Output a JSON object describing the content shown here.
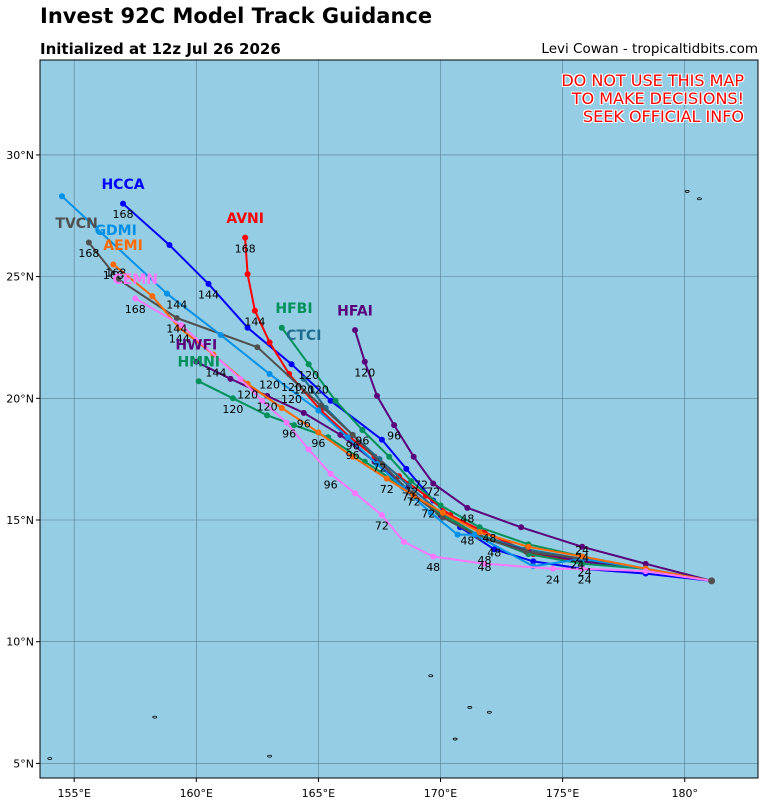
{
  "header": {
    "title": "Invest 92C Model Track Guidance",
    "initialized": "Initialized at 12z Jul 26 2026",
    "credit": "Levi Cowan - tropicaltidbits.com"
  },
  "warning": {
    "line1": "DO NOT USE THIS MAP",
    "line2": "TO MAKE DECISIONS!",
    "line3": "SEEK OFFICIAL INFO"
  },
  "map": {
    "ocean_color": "#94cde4",
    "grid_color": "#5a7f90",
    "lon_ticks": [
      {
        "lon": 155,
        "label": "155°E"
      },
      {
        "lon": 160,
        "label": "160°E"
      },
      {
        "lon": 165,
        "label": "165°E"
      },
      {
        "lon": 170,
        "label": "170°E"
      },
      {
        "lon": 175,
        "label": "175°E"
      },
      {
        "lon": 180,
        "label": "180°"
      }
    ],
    "lat_ticks": [
      {
        "lat": 5,
        "label": "5°N"
      },
      {
        "lat": 10,
        "label": "10°N"
      },
      {
        "lat": 15,
        "label": "15°N"
      },
      {
        "lat": 20,
        "label": "20°N"
      },
      {
        "lat": 25,
        "label": "25°N"
      },
      {
        "lat": 30,
        "label": "30°N"
      }
    ],
    "lon_range": [
      153.6,
      183.0
    ],
    "lat_range": [
      4.4,
      33.9
    ]
  },
  "models": [
    {
      "name": "HCCA",
      "color": "#0000ff",
      "points": [
        [
          181.1,
          12.5
        ],
        [
          178.4,
          12.8
        ],
        [
          175.8,
          13.0
        ],
        [
          173.8,
          13.3
        ],
        [
          172.2,
          13.8
        ],
        [
          170.8,
          14.7
        ],
        [
          169.7,
          15.8
        ],
        [
          168.6,
          17.1
        ],
        [
          167.6,
          18.3
        ],
        [
          165.5,
          19.9
        ],
        [
          163.9,
          21.4
        ],
        [
          162.1,
          22.9
        ],
        [
          160.5,
          24.7
        ],
        [
          158.9,
          26.3
        ],
        [
          157.0,
          28.0
        ]
      ],
      "label": [
        157.0,
        28.6
      ],
      "hour_labels": [
        {
          "t": "168",
          "lon": 157.0,
          "lat": 27.4
        },
        {
          "t": "144",
          "lon": 160.5,
          "lat": 24.1
        }
      ]
    },
    {
      "name": "AVNI",
      "color": "#ff0000",
      "points": [
        [
          181.1,
          12.5
        ],
        [
          178.4,
          13.0
        ],
        [
          175.8,
          13.3
        ],
        [
          173.8,
          13.6
        ],
        [
          171.8,
          14.5
        ],
        [
          170.4,
          15.2
        ],
        [
          169.4,
          16.0
        ],
        [
          168.3,
          16.8
        ],
        [
          167.3,
          17.6
        ],
        [
          166.3,
          18.4
        ],
        [
          165.1,
          19.5
        ],
        [
          163.8,
          21.0
        ],
        [
          163.0,
          22.3
        ],
        [
          162.4,
          23.6
        ],
        [
          162.1,
          25.1
        ],
        [
          162.0,
          26.6
        ]
      ],
      "label": [
        162.0,
        27.2
      ],
      "hour_labels": [
        {
          "t": "168",
          "lon": 162.0,
          "lat": 26.0
        },
        {
          "t": "144",
          "lon": 162.4,
          "lat": 23.0
        },
        {
          "t": "120",
          "lon": 163.9,
          "lat": 20.3
        }
      ]
    },
    {
      "name": "HFAI",
      "color": "#5a007a",
      "points": [
        [
          181.1,
          12.5
        ],
        [
          178.4,
          13.2
        ],
        [
          175.8,
          13.9
        ],
        [
          173.3,
          14.7
        ],
        [
          171.1,
          15.5
        ],
        [
          169.7,
          16.5
        ],
        [
          168.9,
          17.6
        ],
        [
          168.1,
          18.9
        ],
        [
          167.4,
          20.1
        ],
        [
          166.9,
          21.5
        ],
        [
          166.5,
          22.8
        ]
      ],
      "label": [
        166.5,
        23.4
      ],
      "hour_labels": [
        {
          "t": "120",
          "lon": 166.9,
          "lat": 20.9
        },
        {
          "t": "96",
          "lon": 168.1,
          "lat": 18.3
        },
        {
          "t": "72",
          "lon": 169.7,
          "lat": 16.0
        },
        {
          "t": "48",
          "lon": 171.1,
          "lat": 14.9
        }
      ]
    },
    {
      "name": "HFBI",
      "color": "#00905a",
      "points": [
        [
          181.1,
          12.5
        ],
        [
          178.4,
          13.0
        ],
        [
          175.8,
          13.5
        ],
        [
          173.6,
          14.0
        ],
        [
          171.6,
          14.7
        ],
        [
          170.0,
          15.6
        ],
        [
          168.8,
          16.6
        ],
        [
          167.9,
          17.6
        ],
        [
          166.8,
          18.7
        ],
        [
          165.7,
          19.9
        ],
        [
          164.6,
          21.4
        ],
        [
          163.5,
          22.9
        ]
      ],
      "label": [
        164.0,
        23.5
      ],
      "hour_labels": [
        {
          "t": "120",
          "lon": 164.6,
          "lat": 20.8
        },
        {
          "t": "96",
          "lon": 166.8,
          "lat": 18.1
        },
        {
          "t": "72",
          "lon": 168.8,
          "lat": 16.0
        }
      ]
    },
    {
      "name": "CTCI",
      "color": "#1f6c8c",
      "points": [
        [
          181.1,
          12.5
        ],
        [
          178.4,
          13.0
        ],
        [
          175.8,
          13.4
        ],
        [
          173.5,
          13.8
        ],
        [
          171.5,
          14.4
        ],
        [
          170.0,
          15.3
        ],
        [
          168.7,
          16.4
        ],
        [
          167.5,
          17.5
        ],
        [
          166.4,
          18.5
        ],
        [
          165.3,
          19.6
        ],
        [
          164.4,
          20.8
        ]
      ],
      "label": [
        164.4,
        22.4
      ],
      "hour_labels": [
        {
          "t": "120",
          "lon": 164.4,
          "lat": 20.2
        },
        {
          "t": "96",
          "lon": 166.4,
          "lat": 17.9
        },
        {
          "t": "72",
          "lon": 168.7,
          "lat": 15.8
        }
      ]
    },
    {
      "name": "HWFI",
      "color": "#5a007a",
      "points": [
        [
          181.1,
          12.5
        ],
        [
          178.4,
          13.0
        ],
        [
          175.8,
          13.3
        ],
        [
          173.6,
          13.7
        ],
        [
          171.6,
          14.3
        ],
        [
          170.0,
          15.2
        ],
        [
          168.6,
          16.3
        ],
        [
          167.3,
          17.4
        ],
        [
          165.9,
          18.5
        ],
        [
          164.4,
          19.4
        ],
        [
          162.9,
          20.1
        ],
        [
          161.4,
          20.8
        ],
        [
          160.0,
          21.5
        ]
      ],
      "label": [
        160.0,
        22.0
      ],
      "hour_labels": [
        {
          "t": "144",
          "lon": 160.8,
          "lat": 20.9
        },
        {
          "t": "120",
          "lon": 162.9,
          "lat": 19.5
        },
        {
          "t": "96",
          "lon": 164.4,
          "lat": 18.8
        }
      ]
    },
    {
      "name": "HMNI",
      "color": "#00905a",
      "points": [
        [
          181.1,
          12.5
        ],
        [
          178.4,
          13.0
        ],
        [
          175.8,
          13.2
        ],
        [
          173.6,
          13.6
        ],
        [
          171.5,
          14.4
        ],
        [
          169.9,
          15.3
        ],
        [
          168.4,
          16.4
        ],
        [
          166.9,
          17.4
        ],
        [
          165.4,
          18.4
        ],
        [
          164.0,
          18.9
        ],
        [
          162.9,
          19.3
        ],
        [
          161.5,
          20.0
        ],
        [
          160.1,
          20.7
        ]
      ],
      "label": [
        160.1,
        21.3
      ],
      "hour_labels": [
        {
          "t": "120",
          "lon": 161.5,
          "lat": 19.4
        },
        {
          "t": "96",
          "lon": 163.8,
          "lat": 18.4
        }
      ]
    },
    {
      "name": "TVCN",
      "color": "#505050",
      "points": [
        [
          181.1,
          12.5
        ],
        [
          178.4,
          13.0
        ],
        [
          175.8,
          13.4
        ],
        [
          173.5,
          13.7
        ],
        [
          171.6,
          14.3
        ],
        [
          170.1,
          15.1
        ],
        [
          168.8,
          16.1
        ],
        [
          167.6,
          17.3
        ],
        [
          166.4,
          18.5
        ],
        [
          165.1,
          19.7
        ],
        [
          162.5,
          22.1
        ],
        [
          159.2,
          23.3
        ],
        [
          156.8,
          24.9
        ],
        [
          155.6,
          26.4
        ]
      ],
      "label": [
        155.1,
        27.0
      ],
      "hour_labels": [
        {
          "t": "168",
          "lon": 155.6,
          "lat": 25.8
        },
        {
          "t": "144",
          "lon": 159.2,
          "lat": 22.7
        }
      ]
    },
    {
      "name": "GDMI",
      "color": "#0090e8",
      "points": [
        [
          181.1,
          12.5
        ],
        [
          178.4,
          13.0
        ],
        [
          175.8,
          13.4
        ],
        [
          173.8,
          13.1
        ],
        [
          171.4,
          14.4
        ],
        [
          170.7,
          14.4
        ],
        [
          169.6,
          15.3
        ],
        [
          168.5,
          16.3
        ],
        [
          167.4,
          17.3
        ],
        [
          166.2,
          18.4
        ],
        [
          165.0,
          19.5
        ],
        [
          163.0,
          21.0
        ],
        [
          161.0,
          22.6
        ],
        [
          158.8,
          24.3
        ],
        [
          154.5,
          28.3
        ]
      ],
      "label": [
        156.7,
        26.7
      ],
      "hour_labels": [
        {
          "t": "168",
          "lon": 156.7,
          "lat": 25.0
        },
        {
          "t": "144",
          "lon": 159.2,
          "lat": 23.7
        },
        {
          "t": "120",
          "lon": 163.0,
          "lat": 20.4
        }
      ]
    },
    {
      "name": "AEMI",
      "color": "#ff6a00",
      "points": [
        [
          181.1,
          12.5
        ],
        [
          178.4,
          13.0
        ],
        [
          175.8,
          13.5
        ],
        [
          173.6,
          13.9
        ],
        [
          171.6,
          14.5
        ],
        [
          170.1,
          15.3
        ],
        [
          168.9,
          16.0
        ],
        [
          167.8,
          16.7
        ],
        [
          166.4,
          17.6
        ],
        [
          165.0,
          18.6
        ],
        [
          163.5,
          19.6
        ],
        [
          162.1,
          20.6
        ],
        [
          160.7,
          21.8
        ],
        [
          159.3,
          22.9
        ],
        [
          158.2,
          24.2
        ],
        [
          156.6,
          25.5
        ]
      ],
      "label": [
        157.0,
        26.1
      ],
      "hour_labels": [
        {
          "t": "168",
          "lon": 156.6,
          "lat": 24.9
        },
        {
          "t": "144",
          "lon": 159.3,
          "lat": 22.3
        },
        {
          "t": "120",
          "lon": 162.1,
          "lat": 20.0
        },
        {
          "t": "96",
          "lon": 165.0,
          "lat": 18.0
        },
        {
          "t": "72",
          "lon": 167.8,
          "lat": 16.1
        }
      ]
    },
    {
      "name": "CEMN",
      "color": "#ff77ff",
      "points": [
        [
          181.1,
          12.5
        ],
        [
          178.4,
          12.9
        ],
        [
          175.8,
          13.0
        ],
        [
          174.6,
          13.0
        ],
        [
          171.8,
          13.2
        ],
        [
          169.7,
          13.5
        ],
        [
          168.5,
          14.1
        ],
        [
          167.6,
          15.2
        ],
        [
          166.5,
          16.1
        ],
        [
          165.5,
          16.9
        ],
        [
          164.6,
          17.9
        ],
        [
          163.7,
          19.0
        ],
        [
          162.7,
          19.9
        ],
        [
          161.8,
          20.8
        ],
        [
          159.4,
          23.0
        ],
        [
          157.5,
          24.1
        ]
      ],
      "label": [
        157.5,
        24.7
      ],
      "hour_labels": [
        {
          "t": "168",
          "lon": 157.5,
          "lat": 23.5
        },
        {
          "t": "48",
          "lon": 169.7,
          "lat": 12.9
        },
        {
          "t": "72",
          "lon": 167.6,
          "lat": 14.6
        },
        {
          "t": "96",
          "lon": 165.5,
          "lat": 16.3
        },
        {
          "t": "24",
          "lon": 174.6,
          "lat": 12.4
        }
      ]
    }
  ],
  "extra_hour_labels": [
    {
      "t": "120",
      "lon": 163.9,
      "lat": 19.8
    },
    {
      "t": "120",
      "lon": 165.0,
      "lat": 20.2
    },
    {
      "t": "96",
      "lon": 166.4,
      "lat": 17.5
    },
    {
      "t": "72",
      "lon": 167.5,
      "lat": 17.0
    },
    {
      "t": "72",
      "lon": 169.2,
      "lat": 16.3
    },
    {
      "t": "72",
      "lon": 168.9,
      "lat": 15.6
    },
    {
      "t": "72",
      "lon": 169.5,
      "lat": 15.1
    },
    {
      "t": "48",
      "lon": 171.1,
      "lat": 14.0
    },
    {
      "t": "48",
      "lon": 172.0,
      "lat": 14.1
    },
    {
      "t": "48",
      "lon": 172.2,
      "lat": 13.5
    },
    {
      "t": "48",
      "lon": 171.8,
      "lat": 13.2
    },
    {
      "t": "48",
      "lon": 171.8,
      "lat": 12.9
    },
    {
      "t": "24",
      "lon": 175.8,
      "lat": 13.6
    },
    {
      "t": "24",
      "lon": 175.8,
      "lat": 13.3
    },
    {
      "t": "24",
      "lon": 175.6,
      "lat": 13.0
    },
    {
      "t": "24",
      "lon": 175.9,
      "lat": 12.7
    },
    {
      "t": "24",
      "lon": 175.9,
      "lat": 12.4
    }
  ]
}
